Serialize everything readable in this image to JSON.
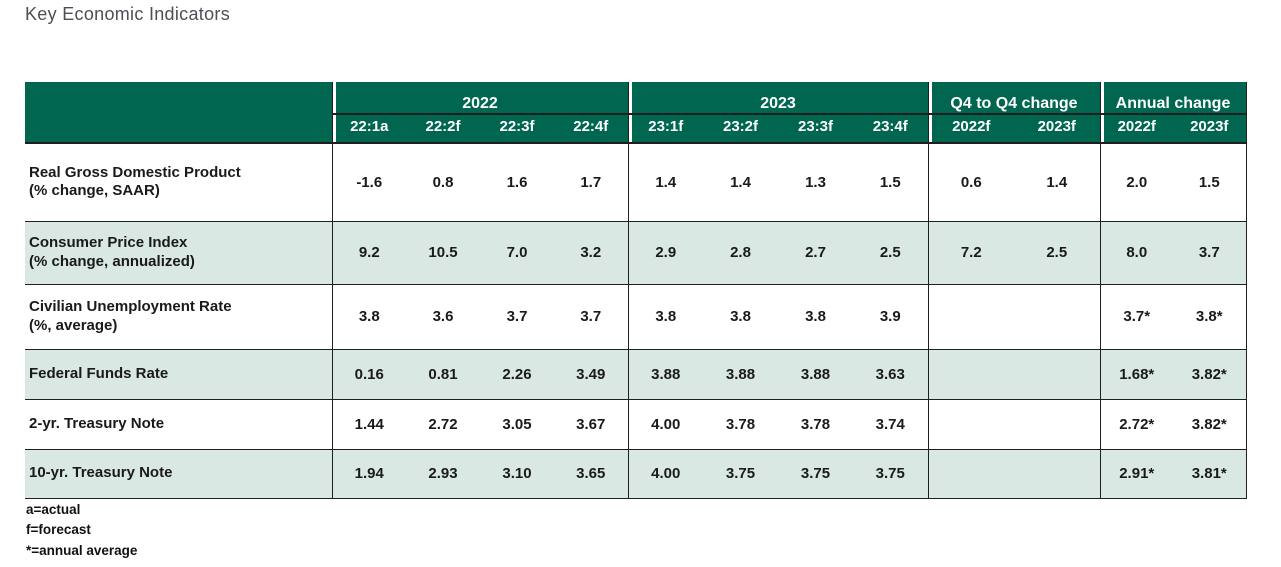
{
  "title": "Key Economic Indicators",
  "colors": {
    "header_bg": "#00664f",
    "stripe_bg": "#d9e8e3",
    "text": "#1a1a1a",
    "title_text": "#4e4e57"
  },
  "chart_data": {
    "type": "table",
    "title": "Key Economic Indicators",
    "column_groups": [
      {
        "label": "2022",
        "columns": [
          "22:1a",
          "22:2f",
          "22:3f",
          "22:4f"
        ]
      },
      {
        "label": "2023",
        "columns": [
          "23:1f",
          "23:2f",
          "23:3f",
          "23:4f"
        ]
      },
      {
        "label": "Q4 to Q4 change",
        "columns": [
          "2022f",
          "2023f"
        ]
      },
      {
        "label": "Annual change",
        "columns": [
          "2022f",
          "2023f"
        ]
      }
    ],
    "rows": [
      {
        "label": "Real Gross Domestic Product",
        "sublabel": "(% change, SAAR)",
        "values": [
          "-1.6",
          "0.8",
          "1.6",
          "1.7",
          "1.4",
          "1.4",
          "1.3",
          "1.5",
          "0.6",
          "1.4",
          "2.0",
          "1.5"
        ]
      },
      {
        "label": "Consumer Price Index",
        "sublabel": "(% change, annualized)",
        "values": [
          "9.2",
          "10.5",
          "7.0",
          "3.2",
          "2.9",
          "2.8",
          "2.7",
          "2.5",
          "7.2",
          "2.5",
          "8.0",
          "3.7"
        ]
      },
      {
        "label": "Civilian Unemployment Rate",
        "sublabel": "(%, average)",
        "values": [
          "3.8",
          "3.6",
          "3.7",
          "3.7",
          "3.8",
          "3.8",
          "3.8",
          "3.9",
          "",
          "",
          "3.7*",
          "3.8*"
        ]
      },
      {
        "label": "Federal Funds Rate",
        "sublabel": "",
        "values": [
          "0.16",
          "0.81",
          "2.26",
          "3.49",
          "3.88",
          "3.88",
          "3.88",
          "3.63",
          "",
          "",
          "1.68*",
          "3.82*"
        ]
      },
      {
        "label": "2-yr. Treasury Note",
        "sublabel": "",
        "values": [
          "1.44",
          "2.72",
          "3.05",
          "3.67",
          "4.00",
          "3.78",
          "3.78",
          "3.74",
          "",
          "",
          "2.72*",
          "3.82*"
        ]
      },
      {
        "label": "10-yr. Treasury Note",
        "sublabel": "",
        "values": [
          "1.94",
          "2.93",
          "3.10",
          "3.65",
          "4.00",
          "3.75",
          "3.75",
          "3.75",
          "",
          "",
          "2.91*",
          "3.81*"
        ]
      }
    ],
    "footnotes": [
      "a=actual",
      "f=forecast",
      "*=annual average"
    ]
  }
}
